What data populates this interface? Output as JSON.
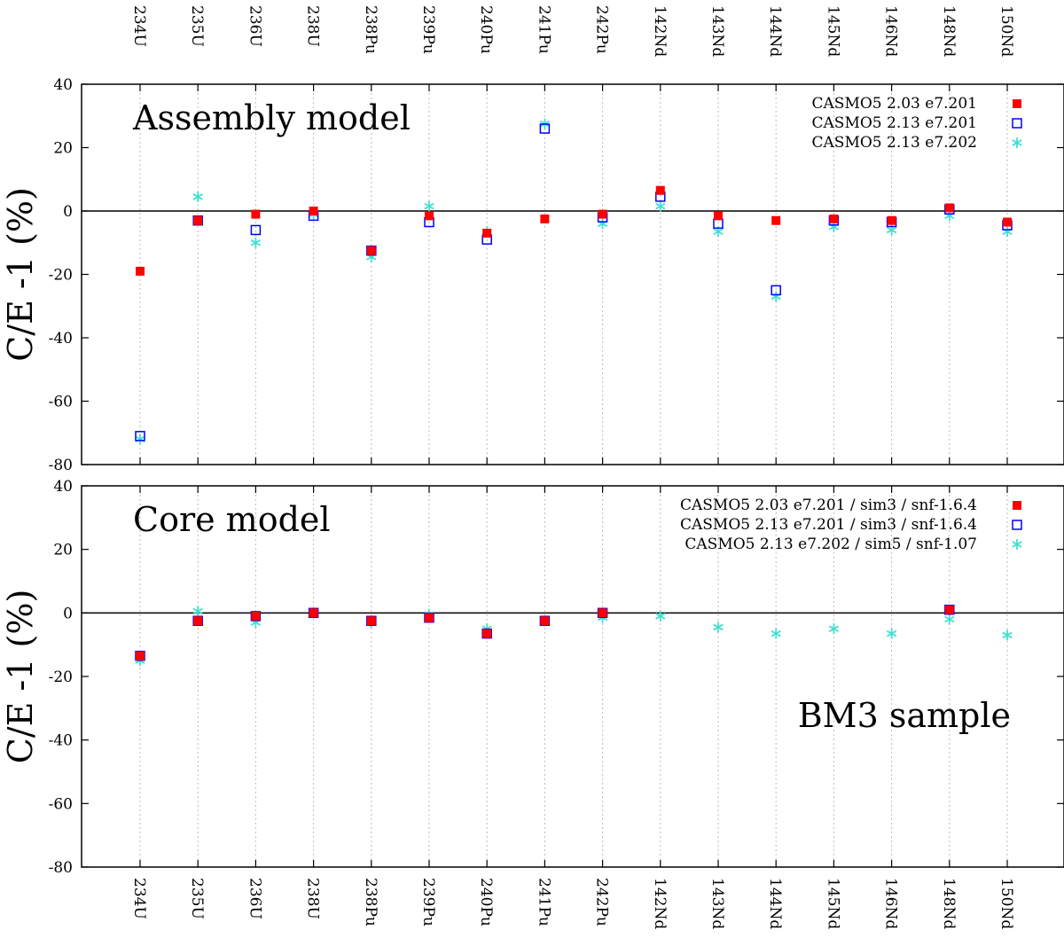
{
  "chart_data": [
    {
      "type": "scatter",
      "title": "Assembly model",
      "ylabel": "C/E -1 (%)",
      "ylim": [
        -80,
        40
      ],
      "yticks": [
        "-80",
        "-60",
        "-40",
        "-20",
        "0",
        "20",
        "40"
      ],
      "categories": [
        "234U",
        "235U",
        "236U",
        "238U",
        "238Pu",
        "239Pu",
        "240Pu",
        "241Pu",
        "242Pu",
        "142Nd",
        "143Nd",
        "144Nd",
        "145Nd",
        "146Nd",
        "148Nd",
        "150Nd"
      ],
      "legend_position": "top-right",
      "grid": "vertical dotted",
      "series": [
        {
          "name": "CASMO5 2.03 e7.201",
          "marker": "filled-square",
          "color": "#ff0000",
          "values": [
            -19,
            -3,
            -1,
            0,
            -12.5,
            -1.5,
            -7,
            -2.5,
            -1,
            6.5,
            -1.5,
            -3,
            -2.5,
            -3,
            1,
            -3.5
          ]
        },
        {
          "name": "CASMO5 2.13 e7.201",
          "marker": "open-square",
          "color": "#0000ff",
          "values": [
            -71,
            -3,
            -6,
            -1.5,
            -12.5,
            -3.5,
            -9,
            26,
            -2,
            4.5,
            -4,
            -25,
            -3,
            -3.5,
            0.5,
            -4.5
          ]
        },
        {
          "name": "CASMO5 2.13 e7.202",
          "marker": "asterisk",
          "color": "#40e0d0",
          "values": [
            -72,
            4.5,
            -10,
            -1,
            -14.5,
            1.5,
            -6.5,
            27.5,
            -4,
            1.5,
            -6.5,
            -27,
            -5,
            -6,
            -1.5,
            -6.5
          ]
        }
      ]
    },
    {
      "type": "scatter",
      "title": "Core model",
      "annotation": "BM3 sample",
      "ylabel": "C/E -1 (%)",
      "ylim": [
        -80,
        40
      ],
      "yticks": [
        "-80",
        "-60",
        "-40",
        "-20",
        "0",
        "20",
        "40"
      ],
      "categories": [
        "234U",
        "235U",
        "236U",
        "238U",
        "238Pu",
        "239Pu",
        "240Pu",
        "241Pu",
        "242Pu",
        "142Nd",
        "143Nd",
        "144Nd",
        "145Nd",
        "146Nd",
        "148Nd",
        "150Nd"
      ],
      "legend_position": "top-right",
      "grid": "vertical dotted",
      "series": [
        {
          "name": "CASMO5 2.03 e7.201 / sim3 / snf-1.6.4",
          "marker": "filled-square",
          "color": "#ff0000",
          "values": [
            -13.5,
            -2.5,
            -1,
            0,
            -2.5,
            -1.5,
            -6.5,
            -2.5,
            0,
            null,
            null,
            null,
            null,
            null,
            1,
            null
          ]
        },
        {
          "name": "CASMO5 2.13 e7.201 / sim3 / snf-1.6.4",
          "marker": "open-square",
          "color": "#0000ff",
          "values": [
            -13.5,
            -2.5,
            -1,
            0,
            -2.5,
            -1.5,
            -6.5,
            -2.5,
            0,
            null,
            null,
            null,
            null,
            null,
            1,
            null
          ]
        },
        {
          "name": "CASMO5 2.13 e7.202 / sim5 / snf-1.07",
          "marker": "asterisk",
          "color": "#40e0d0",
          "values": [
            -15,
            0.5,
            -3,
            0,
            -3,
            -0.5,
            -5,
            -2.5,
            -1.5,
            -1,
            -4.5,
            -6.5,
            -5,
            -6.5,
            -2,
            -7
          ]
        }
      ]
    }
  ]
}
